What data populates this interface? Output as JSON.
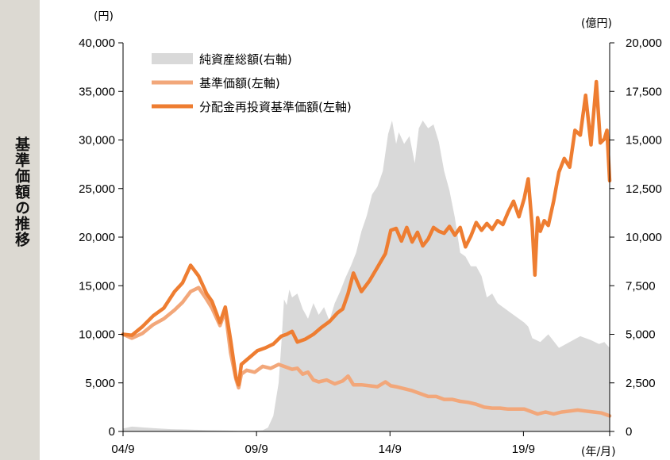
{
  "side_title": "基準価額の推移",
  "chart_data": {
    "type": "line",
    "left_axis_unit": "(円)",
    "right_axis_unit": "(億円)",
    "x_axis_unit": "(年/月)",
    "x_tick_labels": [
      "04/9",
      "09/9",
      "14/9",
      "19/9"
    ],
    "left_axis": {
      "ylim": [
        0,
        40000
      ],
      "ticks": [
        "0",
        "5,000",
        "10,000",
        "15,000",
        "20,000",
        "25,000",
        "30,000",
        "35,000",
        "40,000"
      ]
    },
    "right_axis": {
      "ylim": [
        0,
        20000
      ],
      "ticks": [
        "0",
        "2,500",
        "5,000",
        "7,500",
        "10,000",
        "12,500",
        "15,000",
        "17,500",
        "20,000"
      ]
    },
    "x_range": [
      2004.67,
      2022.9
    ],
    "legend_position": "top-left",
    "series": [
      {
        "name": "純資産総額(右軸)",
        "kind": "area",
        "axis": "right",
        "color": "#d9d9d9",
        "x": [
          2004.67,
          2005.0,
          2005.5,
          2006.0,
          2006.5,
          2007.0,
          2007.5,
          2008.0,
          2008.5,
          2009.0,
          2009.5,
          2009.9,
          2010.1,
          2010.3,
          2010.5,
          2010.6,
          2010.7,
          2010.8,
          2010.9,
          2011.0,
          2011.2,
          2011.4,
          2011.6,
          2011.8,
          2012.0,
          2012.2,
          2012.4,
          2012.6,
          2012.8,
          2013.0,
          2013.2,
          2013.4,
          2013.6,
          2013.8,
          2014.0,
          2014.2,
          2014.4,
          2014.6,
          2014.75,
          2014.9,
          2015.0,
          2015.2,
          2015.4,
          2015.6,
          2015.75,
          2015.9,
          2016.1,
          2016.3,
          2016.5,
          2016.7,
          2016.9,
          2017.1,
          2017.3,
          2017.5,
          2017.7,
          2017.9,
          2018.1,
          2018.3,
          2018.5,
          2018.7,
          2018.9,
          2019.1,
          2019.3,
          2019.5,
          2019.7,
          2019.85,
          2020.0,
          2020.3,
          2020.6,
          2021.0,
          2021.4,
          2021.8,
          2022.2,
          2022.5,
          2022.7,
          2022.9
        ],
        "values": [
          150,
          250,
          200,
          150,
          120,
          100,
          80,
          60,
          50,
          30,
          30,
          60,
          200,
          800,
          2500,
          4500,
          6800,
          6500,
          7300,
          6900,
          7100,
          6300,
          5800,
          6600,
          6000,
          6400,
          5700,
          6600,
          7200,
          7900,
          8500,
          9200,
          10300,
          11100,
          12200,
          12600,
          13400,
          15300,
          16000,
          14800,
          15400,
          14800,
          15200,
          13800,
          15600,
          16000,
          15600,
          15800,
          14900,
          13400,
          12400,
          11000,
          9200,
          9000,
          8500,
          8500,
          8000,
          6900,
          7100,
          6600,
          6400,
          6200,
          6000,
          5800,
          5600,
          5400,
          4800,
          4600,
          5000,
          4300,
          4600,
          4900,
          4700,
          4500,
          4600,
          4300
        ]
      },
      {
        "name": "基準価額(左軸)",
        "kind": "line",
        "axis": "left",
        "color": "#f2a77a",
        "x": [
          2004.67,
          2005.0,
          2005.4,
          2005.8,
          2006.2,
          2006.6,
          2006.9,
          2007.2,
          2007.5,
          2007.8,
          2008.0,
          2008.3,
          2008.5,
          2008.7,
          2008.9,
          2009.0,
          2009.1,
          2009.3,
          2009.6,
          2009.9,
          2010.2,
          2010.5,
          2010.8,
          2011.0,
          2011.2,
          2011.4,
          2011.6,
          2011.8,
          2012.0,
          2012.3,
          2012.6,
          2012.9,
          2013.1,
          2013.3,
          2013.6,
          2013.9,
          2014.2,
          2014.5,
          2014.7,
          2014.9,
          2015.2,
          2015.5,
          2015.8,
          2016.1,
          2016.4,
          2016.7,
          2017.0,
          2017.3,
          2017.6,
          2017.9,
          2018.2,
          2018.5,
          2018.8,
          2019.1,
          2019.4,
          2019.7,
          2020.0,
          2020.2,
          2020.5,
          2020.8,
          2021.1,
          2021.4,
          2021.7,
          2022.0,
          2022.3,
          2022.6,
          2022.9
        ],
        "values": [
          10000,
          9600,
          10100,
          11000,
          11600,
          12500,
          13300,
          14400,
          14800,
          13600,
          12700,
          10900,
          12400,
          8100,
          5400,
          4500,
          5900,
          6300,
          6100,
          6700,
          6500,
          6900,
          6600,
          6400,
          6500,
          5900,
          6100,
          5300,
          5100,
          5300,
          4900,
          5200,
          5700,
          4800,
          4800,
          4700,
          4600,
          5100,
          4700,
          4600,
          4400,
          4200,
          3900,
          3600,
          3600,
          3300,
          3300,
          3100,
          3000,
          2800,
          2500,
          2400,
          2400,
          2300,
          2300,
          2300,
          2000,
          1800,
          2000,
          1800,
          2000,
          2100,
          2200,
          2100,
          2000,
          1900,
          1600
        ]
      },
      {
        "name": "分配金再投資基準価額(左軸)",
        "kind": "line",
        "axis": "left",
        "color": "#ee7d31",
        "x": [
          2004.67,
          2005.0,
          2005.4,
          2005.8,
          2006.2,
          2006.6,
          2006.9,
          2007.2,
          2007.5,
          2007.8,
          2008.0,
          2008.3,
          2008.5,
          2008.7,
          2008.9,
          2009.0,
          2009.1,
          2009.4,
          2009.7,
          2010.0,
          2010.3,
          2010.6,
          2010.8,
          2011.0,
          2011.2,
          2011.5,
          2011.8,
          2012.1,
          2012.4,
          2012.7,
          2012.9,
          2013.1,
          2013.3,
          2013.6,
          2013.9,
          2014.2,
          2014.5,
          2014.7,
          2014.9,
          2015.1,
          2015.3,
          2015.5,
          2015.7,
          2015.9,
          2016.1,
          2016.3,
          2016.5,
          2016.7,
          2016.9,
          2017.1,
          2017.3,
          2017.5,
          2017.7,
          2017.9,
          2018.1,
          2018.3,
          2018.5,
          2018.7,
          2018.9,
          2019.1,
          2019.3,
          2019.5,
          2019.7,
          2019.85,
          2020.0,
          2020.1,
          2020.2,
          2020.3,
          2020.45,
          2020.6,
          2020.8,
          2021.0,
          2021.2,
          2021.4,
          2021.6,
          2021.8,
          2022.0,
          2022.2,
          2022.4,
          2022.55,
          2022.7,
          2022.8,
          2022.9
        ],
        "values": [
          10000,
          9900,
          10800,
          11900,
          12700,
          14400,
          15300,
          17100,
          16000,
          14200,
          13400,
          11200,
          12800,
          9400,
          5600,
          4800,
          6900,
          7600,
          8300,
          8600,
          9000,
          9800,
          10000,
          10300,
          9200,
          9500,
          10000,
          10700,
          11300,
          12200,
          12600,
          14200,
          16300,
          14400,
          15500,
          16900,
          18300,
          20700,
          20900,
          19600,
          21000,
          19500,
          20500,
          19100,
          19800,
          21000,
          20600,
          20400,
          21100,
          20200,
          21000,
          19000,
          20100,
          21500,
          20700,
          21400,
          20800,
          21700,
          21300,
          22600,
          23700,
          22100,
          24000,
          26000,
          21000,
          16100,
          22000,
          20600,
          21700,
          21200,
          23700,
          26700,
          28100,
          27200,
          31000,
          30500,
          34600,
          29500,
          36000,
          29700,
          30100,
          31000,
          25800
        ]
      }
    ]
  }
}
